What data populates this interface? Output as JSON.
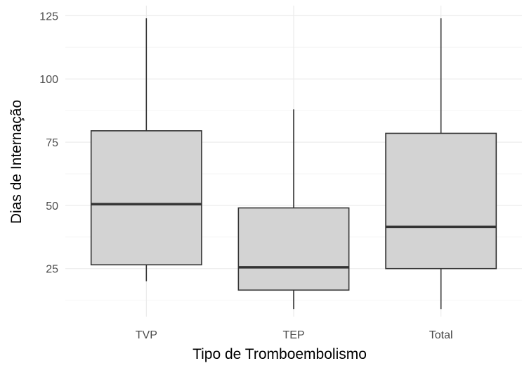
{
  "chart_data": {
    "type": "boxplot",
    "title": "",
    "xlabel": "Tipo de Tromboembolismo",
    "ylabel": "Dias de Internação",
    "ylim": [
      6,
      129
    ],
    "yticks": [
      25,
      50,
      75,
      100,
      125
    ],
    "grid": true,
    "categories": [
      "TVP",
      "TEP",
      "Total"
    ],
    "boxes": [
      {
        "category": "TVP",
        "whisker_low": 20,
        "q1": 26.5,
        "median": 50.5,
        "q3": 79.5,
        "whisker_high": 124
      },
      {
        "category": "TEP",
        "whisker_low": 9,
        "q1": 16.5,
        "median": 25.5,
        "q3": 49,
        "whisker_high": 88
      },
      {
        "category": "Total",
        "whisker_low": 9,
        "q1": 25,
        "median": 41.5,
        "q3": 78.5,
        "whisker_high": 124
      }
    ],
    "colors": {
      "box_fill": "#d3d3d3",
      "box_stroke": "#333333",
      "grid_major": "#ebebeb",
      "grid_minor": "#f5f5f5"
    }
  }
}
